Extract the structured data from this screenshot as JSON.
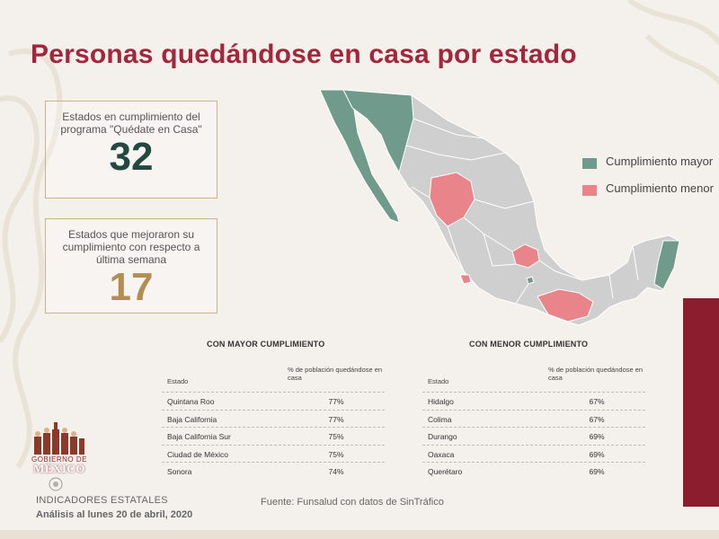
{
  "title": "Personas quedándose en casa por estado",
  "stats": [
    {
      "label": "Estados en cumplimiento del programa \"Quédate en Casa\"",
      "value": "32"
    },
    {
      "label": "Estados que mejoraron su cumplimiento con respecto a última semana",
      "value": "17"
    }
  ],
  "legend": [
    {
      "label": "Cumplimiento mayor",
      "color": "#6f9a8c"
    },
    {
      "label": "Cumplimiento menor",
      "color": "#e9848b"
    }
  ],
  "map": {
    "base_color": "#cfcfcf",
    "high_states": [
      "Baja California",
      "Baja California Sur",
      "Sonora",
      "Quintana Roo",
      "Ciudad de México"
    ],
    "low_states": [
      "Durango",
      "Hidalgo",
      "Querétaro",
      "Oaxaca",
      "Colima"
    ]
  },
  "tables": [
    {
      "heading": "CON MAYOR CUMPLIMIENTO",
      "col_state": "Estado",
      "col_pct": "% de población quedándose en casa",
      "rows": [
        {
          "state": "Quintana Roo",
          "pct": "77%"
        },
        {
          "state": "Baja California",
          "pct": "77%"
        },
        {
          "state": "Baja California Sur",
          "pct": "75%"
        },
        {
          "state": "Ciudad de México",
          "pct": "75%"
        },
        {
          "state": "Sonora",
          "pct": "74%"
        }
      ]
    },
    {
      "heading": "CON MENOR CUMPLIMIENTO",
      "col_state": "Estado",
      "col_pct": "% de población quedándose en casa",
      "rows": [
        {
          "state": "Hidalgo",
          "pct": "67%"
        },
        {
          "state": "Colima",
          "pct": "67%"
        },
        {
          "state": "Durango",
          "pct": "69%"
        },
        {
          "state": "Oaxaca",
          "pct": "69%"
        },
        {
          "state": "Querétaro",
          "pct": "69%"
        }
      ]
    }
  ],
  "branding": {
    "line": "GOBIERNO DE",
    "main": "MÉXICO"
  },
  "footer": {
    "title": "INDICADORES ESTATALES",
    "date": "Análisis al lunes 20 de abril, 2020",
    "source": "Fuente: Funsalud con datos de SinTráfico"
  }
}
